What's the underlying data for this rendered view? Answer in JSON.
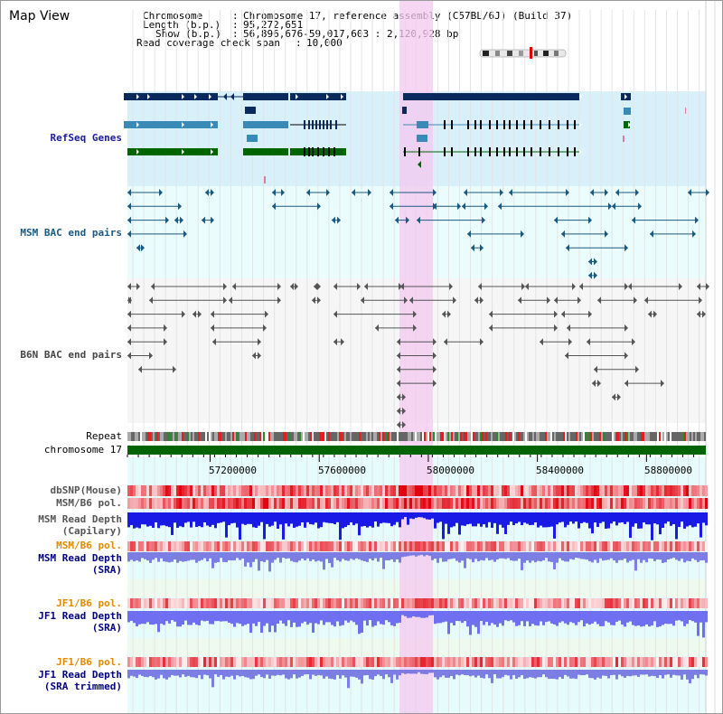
{
  "title": "Map View",
  "header": {
    "chromosome_key": "Chromosome",
    "chromosome_val": "Chromosome 17, reference assembly (C57BL/6J) (Build 37)",
    "length_key": "Length (b.p.)",
    "length_val": "95,272,651",
    "show_key": "Show (b.p.)",
    "show_val": "56,896,676-59,017,603 : 2,120,928 bp",
    "span_key": "Read coverage check span",
    "span_val": "10,000"
  },
  "tracks": {
    "refseq": "RefSeq Genes",
    "msm_bac": "MSM BAC end pairs",
    "b6n_bac": "B6N BAC end pairs",
    "repeat": "Repeat",
    "chromosome": "chromosome 17",
    "dbsnp": "dbSNP(Mouse)",
    "msm_b6_pol_1": "MSM/B6 pol.",
    "msm_depth_cap_1": "MSM Read Depth",
    "msm_depth_cap_2": "(Capilary)",
    "msm_b6_pol_2": "MSM/B6 pol.",
    "msm_depth_sra_1": "MSM Read Depth",
    "msm_depth_sra_2": "(SRA)",
    "jf1_b6_pol_1": "JF1/B6 pol.",
    "jf1_depth_sra_1": "JF1 Read Depth",
    "jf1_depth_sra_2": "(SRA)",
    "jf1_b6_pol_2": "JF1/B6 pol.",
    "jf1_depth_trim_1": "JF1 Read Depth",
    "jf1_depth_trim_2": "(SRA trimmed)"
  },
  "axis": {
    "range_bp": [
      56896676,
      59017603
    ],
    "ticks": [
      {
        "bp": 57200000,
        "label": "57200000"
      },
      {
        "bp": 57600000,
        "label": "57600000"
      },
      {
        "bp": 58000000,
        "label": "58000000"
      },
      {
        "bp": 58400000,
        "label": "58400000"
      },
      {
        "bp": 58800000,
        "label": "58800000"
      }
    ]
  },
  "colors": {
    "refseq_label": "#1a1aa0",
    "msm_bac_label": "#1a5a80",
    "b6n_label": "#444444",
    "pol_orange": "#e08a00",
    "depth_blue": "#000080",
    "gene_dark": "#0a2a5e",
    "gene_mid": "#3a8ab8",
    "gene_green": "#006400",
    "chromosome_green": "#006400",
    "highlight": "#f4c8f0"
  }
}
